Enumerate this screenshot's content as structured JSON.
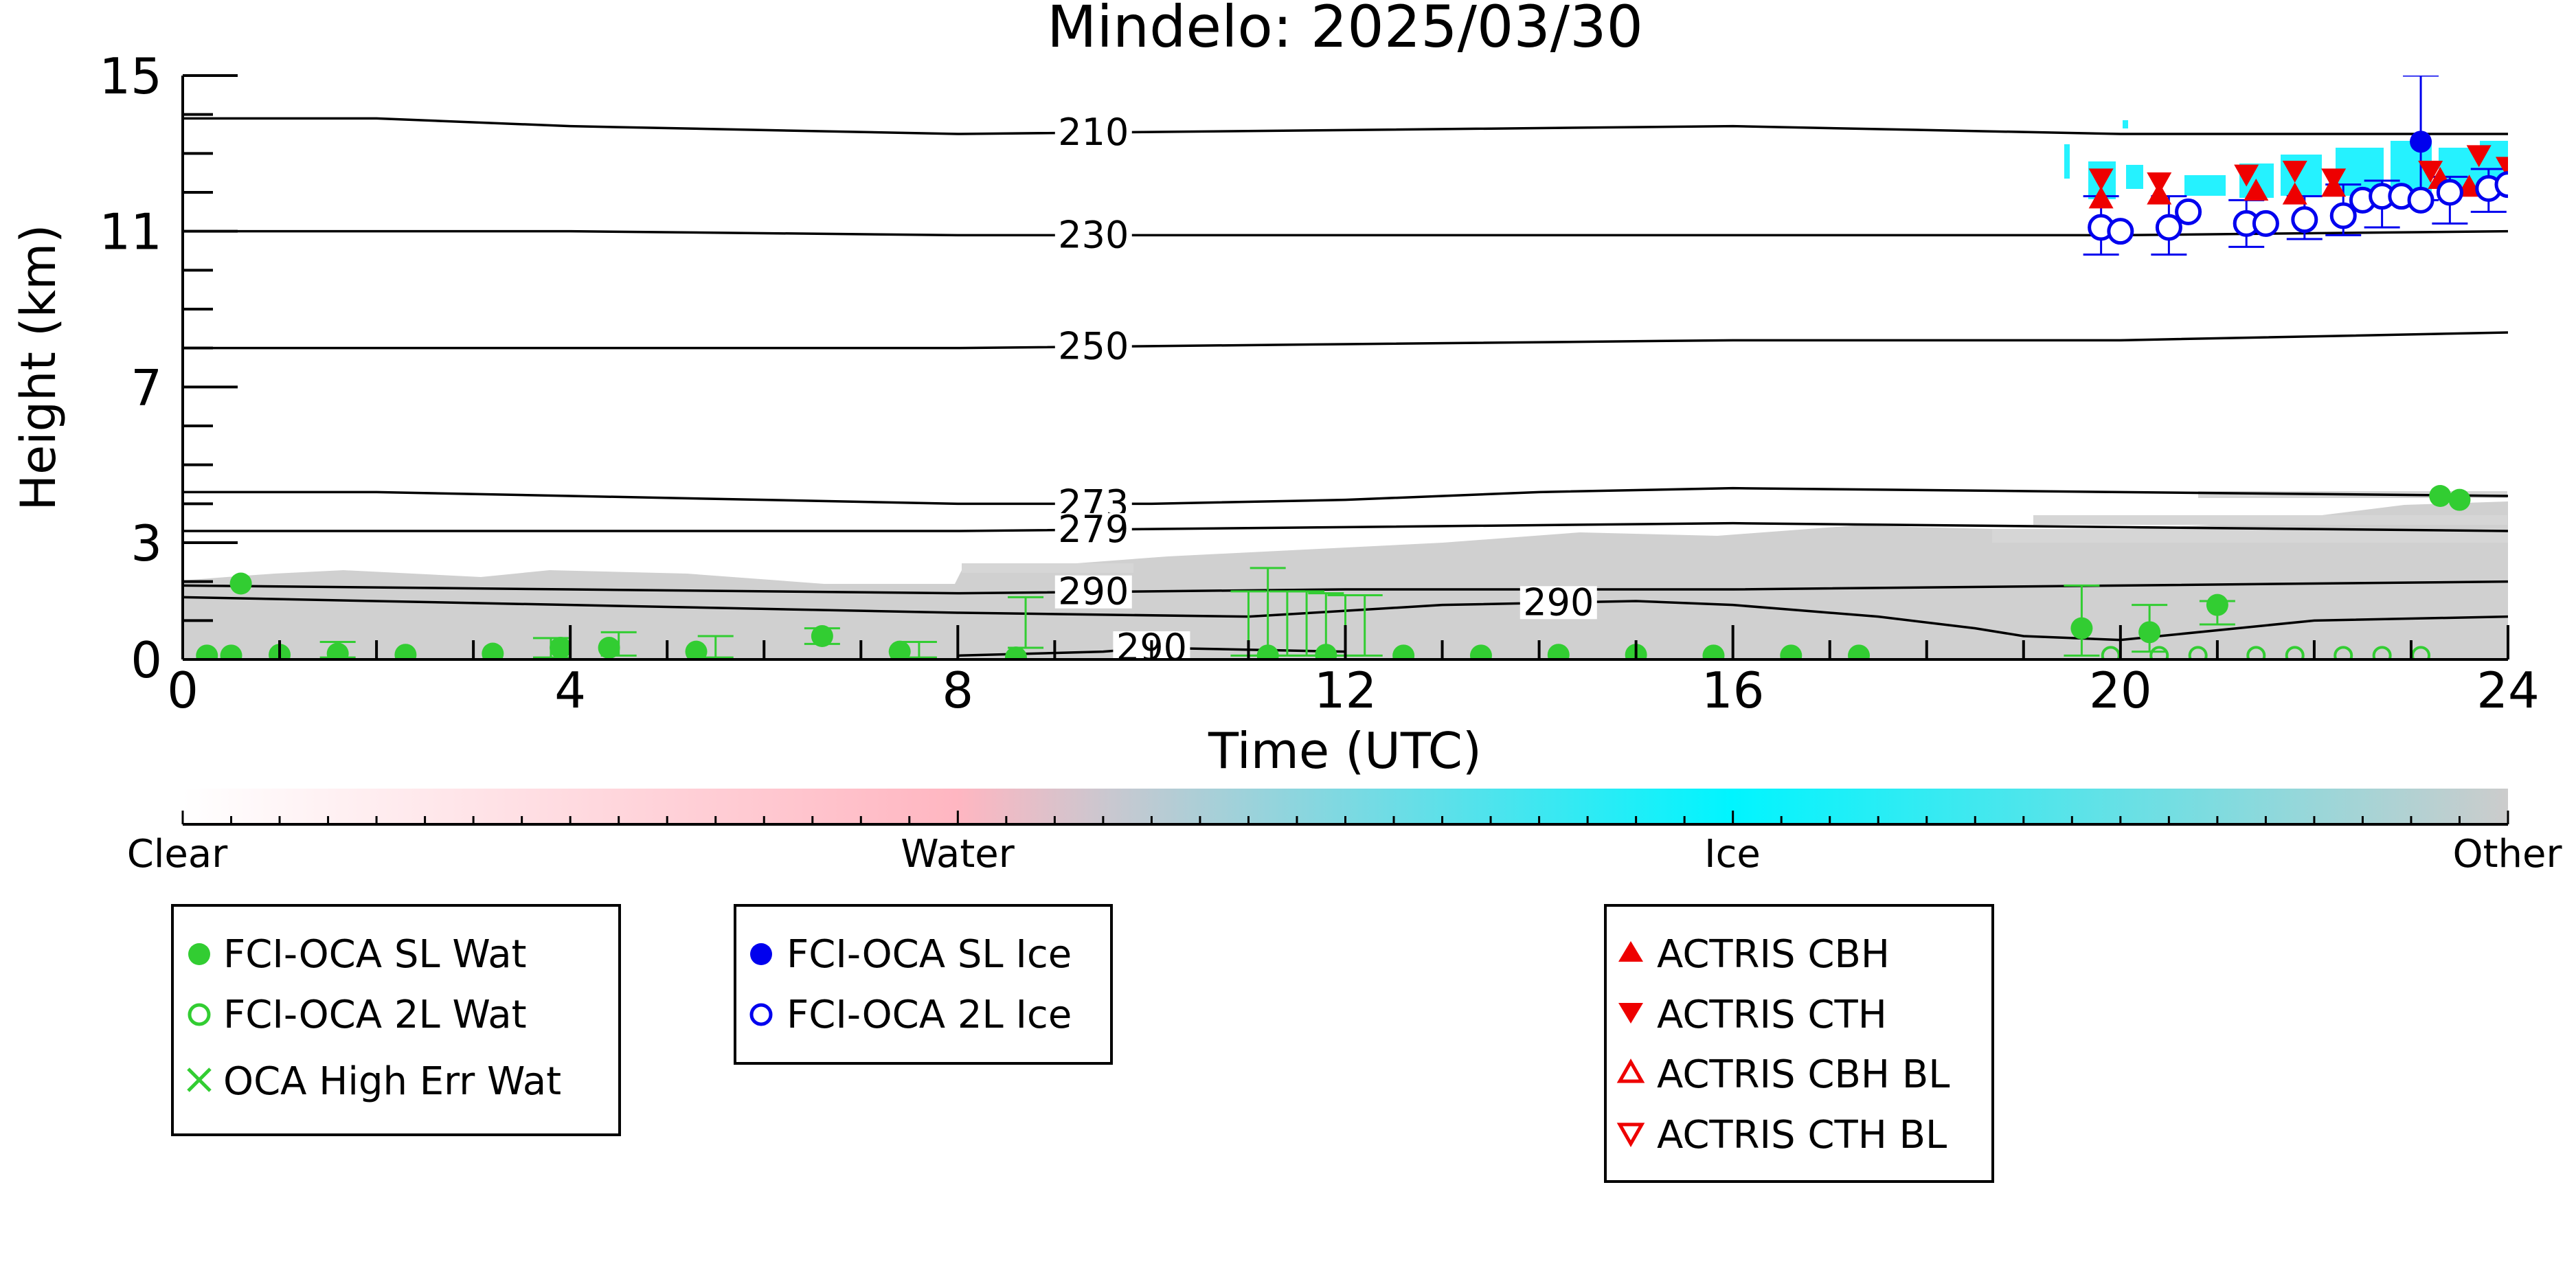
{
  "chart_data": {
    "type": "scatter",
    "title": "Mindelo: 2025/03/30",
    "xlabel": "Time (UTC)",
    "ylabel": "Height (km)",
    "xlim": [
      0,
      24
    ],
    "ylim": [
      0,
      15
    ],
    "xticks": [
      "0",
      "4",
      "8",
      "12",
      "16",
      "20",
      "24"
    ],
    "yticks": [
      "0",
      "3",
      "7",
      "11",
      "15"
    ],
    "colorbar": {
      "labels": [
        "Clear",
        "Water",
        "Ice",
        "Other"
      ],
      "colors": [
        "#ffffff",
        "#ffb6c1",
        "#00f5ff",
        "#cccccc"
      ]
    },
    "temperature_contours": [
      {
        "label": "210",
        "x": [
          0,
          2,
          4,
          8,
          12,
          16,
          20,
          24
        ],
        "y": [
          13.9,
          13.9,
          13.7,
          13.5,
          13.6,
          13.7,
          13.5,
          13.5
        ]
      },
      {
        "label": "230",
        "x": [
          0,
          4,
          8,
          12,
          16,
          20,
          24
        ],
        "y": [
          11.0,
          11.0,
          10.9,
          10.9,
          10.9,
          10.9,
          11.0
        ]
      },
      {
        "label": "250",
        "x": [
          0,
          4,
          8,
          12,
          16,
          20,
          24
        ],
        "y": [
          8.0,
          8.0,
          8.0,
          8.1,
          8.2,
          8.2,
          8.4
        ]
      },
      {
        "label": "273",
        "x": [
          0,
          2,
          4,
          8,
          10,
          12,
          14,
          16,
          20,
          24
        ],
        "y": [
          4.3,
          4.3,
          4.2,
          4.0,
          4.0,
          4.1,
          4.3,
          4.4,
          4.3,
          4.2
        ]
      },
      {
        "label": "279",
        "x": [
          0,
          4,
          8,
          12,
          16,
          20,
          24
        ],
        "y": [
          3.3,
          3.3,
          3.3,
          3.4,
          3.5,
          3.4,
          3.3
        ]
      },
      {
        "label": "290",
        "x": [
          0,
          4,
          8,
          12,
          16,
          20,
          24
        ],
        "y": [
          1.9,
          1.8,
          1.7,
          1.8,
          1.8,
          1.9,
          2.0
        ]
      },
      {
        "label": "290",
        "x": [
          0,
          4,
          8,
          11,
          13,
          15,
          16,
          17.5,
          18.5,
          19,
          20,
          22,
          24
        ],
        "y": [
          1.6,
          1.4,
          1.2,
          1.1,
          1.4,
          1.5,
          1.4,
          1.1,
          0.8,
          0.6,
          0.5,
          1.0,
          1.1
        ]
      },
      {
        "label": "290",
        "x": [
          8,
          9.5,
          10,
          12
        ],
        "y": [
          0.1,
          0.2,
          0.3,
          0.2
        ]
      }
    ],
    "legend_entries": [
      {
        "name": "FCI-OCA SL Wat",
        "marker": "filled-circle",
        "color": "#32cd32"
      },
      {
        "name": "FCI-OCA 2L Wat",
        "marker": "open-circle",
        "color": "#32cd32"
      },
      {
        "name": "OCA High Err Wat",
        "marker": "x",
        "color": "#32cd32"
      },
      {
        "name": "FCI-OCA SL Ice",
        "marker": "filled-circle",
        "color": "#0000ee"
      },
      {
        "name": "FCI-OCA 2L Ice",
        "marker": "open-circle",
        "color": "#0000ee"
      },
      {
        "name": "ACTRIS CBH",
        "marker": "triangle-up",
        "color": "#ee0000"
      },
      {
        "name": "ACTRIS CTH",
        "marker": "triangle-down",
        "color": "#ee0000"
      },
      {
        "name": "ACTRIS CBH BL",
        "marker": "open-triangle-up",
        "color": "#ee0000"
      },
      {
        "name": "ACTRIS CTH BL",
        "marker": "open-triangle-down",
        "color": "#ee0000"
      }
    ],
    "series": [
      {
        "name": "FCI-OCA SL Wat",
        "x": [
          0.6,
          0.25,
          0.5,
          1.0,
          1.6,
          2.3,
          3.2,
          3.9,
          4.4,
          5.3,
          6.6,
          7.4,
          8.6,
          11.2,
          11.8,
          12.6,
          13.4,
          14.2,
          15.0,
          15.8,
          16.6,
          17.3,
          19.6,
          20.3,
          21.0,
          23.3,
          23.5
        ],
        "y": [
          1.95,
          0.1,
          0.1,
          0.12,
          0.15,
          0.12,
          0.15,
          0.3,
          0.3,
          0.2,
          0.6,
          0.2,
          0.05,
          0.1,
          0.12,
          0.1,
          0.1,
          0.12,
          0.12,
          0.1,
          0.1,
          0.1,
          0.8,
          0.7,
          1.4,
          4.2,
          4.1
        ]
      },
      {
        "name": "FCI-OCA 2L Wat",
        "x": [
          19.9,
          20.4,
          20.8,
          21.4,
          21.8,
          22.3,
          22.7,
          23.1
        ],
        "y": [
          0.1,
          0.1,
          0.1,
          0.1,
          0.1,
          0.1,
          0.1,
          0.1
        ]
      },
      {
        "name": "FCI-OCA SL Ice",
        "x": [
          23.1
        ],
        "y": [
          13.3
        ]
      },
      {
        "name": "FCI-OCA 2L Ice",
        "x": [
          19.8,
          20.0,
          20.5,
          20.7,
          21.3,
          21.5,
          21.9,
          22.3,
          22.5,
          22.7,
          22.9,
          23.1,
          23.4,
          23.8,
          24.0
        ],
        "y": [
          11.1,
          11.0,
          11.1,
          11.5,
          11.2,
          11.2,
          11.3,
          11.4,
          11.8,
          11.9,
          11.9,
          11.8,
          12.0,
          12.1,
          12.2
        ]
      },
      {
        "name": "ACTRIS CBH",
        "x": [
          19.8,
          20.4,
          21.4,
          21.8,
          22.2,
          23.3,
          23.6
        ],
        "y": [
          11.8,
          11.9,
          12.0,
          11.9,
          12.1,
          12.3,
          12.1
        ]
      },
      {
        "name": "ACTRIS CTH",
        "x": [
          19.8,
          20.4,
          21.3,
          21.8,
          22.2,
          23.2,
          23.7,
          24.0
        ],
        "y": [
          12.4,
          12.3,
          12.5,
          12.6,
          12.4,
          12.6,
          13.0,
          12.7
        ]
      }
    ],
    "water_errorbars": [
      {
        "x": 1.6,
        "lo": 0.05,
        "hi": 0.45
      },
      {
        "x": 3.8,
        "lo": 0.05,
        "hi": 0.55
      },
      {
        "x": 4.5,
        "lo": 0.1,
        "hi": 0.7
      },
      {
        "x": 5.5,
        "lo": 0.05,
        "hi": 0.6
      },
      {
        "x": 6.6,
        "lo": 0.4,
        "hi": 0.8
      },
      {
        "x": 7.6,
        "lo": 0.05,
        "hi": 0.45
      },
      {
        "x": 8.7,
        "lo": 0.3,
        "hi": 1.6
      },
      {
        "x": 11.0,
        "lo": 0.1,
        "hi": 1.75
      },
      {
        "x": 11.2,
        "lo": 0.1,
        "hi": 2.35
      },
      {
        "x": 11.4,
        "lo": 0.1,
        "hi": 1.75
      },
      {
        "x": 11.6,
        "lo": 0.1,
        "hi": 1.75
      },
      {
        "x": 11.8,
        "lo": 0.1,
        "hi": 1.7
      },
      {
        "x": 12.0,
        "lo": 0.1,
        "hi": 1.65
      },
      {
        "x": 12.2,
        "lo": 0.1,
        "hi": 1.65
      },
      {
        "x": 19.6,
        "lo": 0.1,
        "hi": 1.9
      },
      {
        "x": 20.3,
        "lo": 0.2,
        "hi": 1.4
      },
      {
        "x": 21.0,
        "lo": 0.9,
        "hi": 1.5
      }
    ],
    "ice_errorbars": [
      {
        "x": 19.8,
        "lo": 10.4,
        "hi": 11.9
      },
      {
        "x": 20.5,
        "lo": 10.4,
        "hi": 11.9
      },
      {
        "x": 21.3,
        "lo": 10.6,
        "hi": 11.8
      },
      {
        "x": 21.9,
        "lo": 10.8,
        "hi": 11.9
      },
      {
        "x": 22.3,
        "lo": 10.9,
        "hi": 12.2
      },
      {
        "x": 22.7,
        "lo": 11.1,
        "hi": 12.3
      },
      {
        "x": 23.1,
        "lo": 11.8,
        "hi": 15.0
      },
      {
        "x": 23.4,
        "lo": 11.2,
        "hi": 12.4
      },
      {
        "x": 23.8,
        "lo": 11.5,
        "hi": 12.6
      }
    ]
  }
}
